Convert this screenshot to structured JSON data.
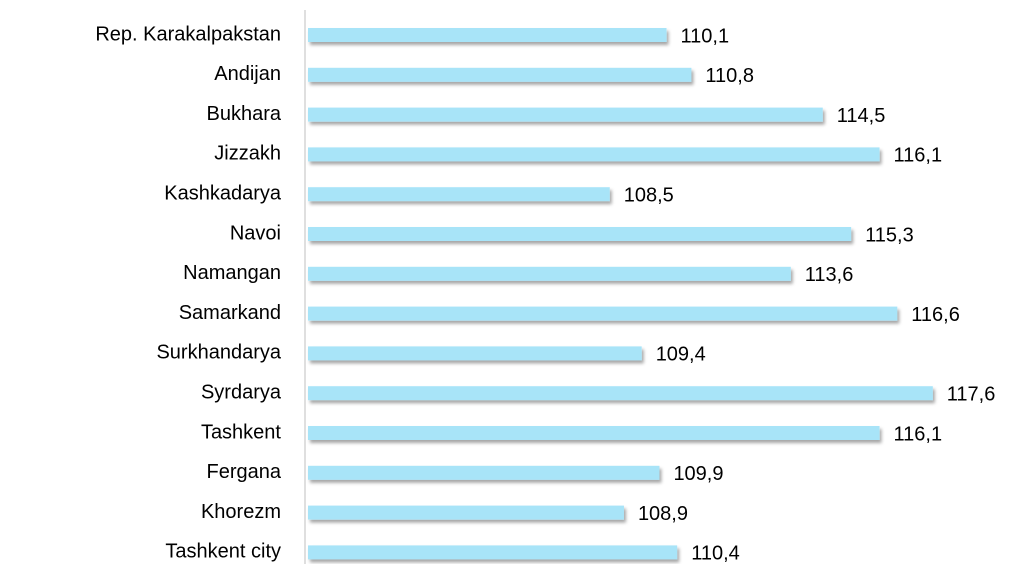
{
  "chart_data": {
    "type": "bar",
    "orientation": "horizontal",
    "categories": [
      "Rep. Karakalpakstan",
      "Andijan",
      "Bukhara",
      "Jizzakh",
      "Kashkadarya",
      "Navoi",
      "Namangan",
      "Samarkand",
      "Surkhandarya",
      "Syrdarya",
      "Tashkent",
      "Fergana",
      "Khorezm",
      "Tashkent city"
    ],
    "values": [
      110.1,
      110.8,
      114.5,
      116.1,
      108.5,
      115.3,
      113.6,
      116.6,
      109.4,
      117.6,
      116.1,
      109.9,
      108.9,
      110.4
    ],
    "value_labels": [
      "110,1",
      "110,8",
      "114,5",
      "116,1",
      "108,5",
      "115,3",
      "113,6",
      "116,6",
      "109,4",
      "117,6",
      "116,1",
      "109,9",
      "108,9",
      "110,4"
    ],
    "color": "#a8e4f8",
    "xlim": [
      100,
      120
    ]
  }
}
